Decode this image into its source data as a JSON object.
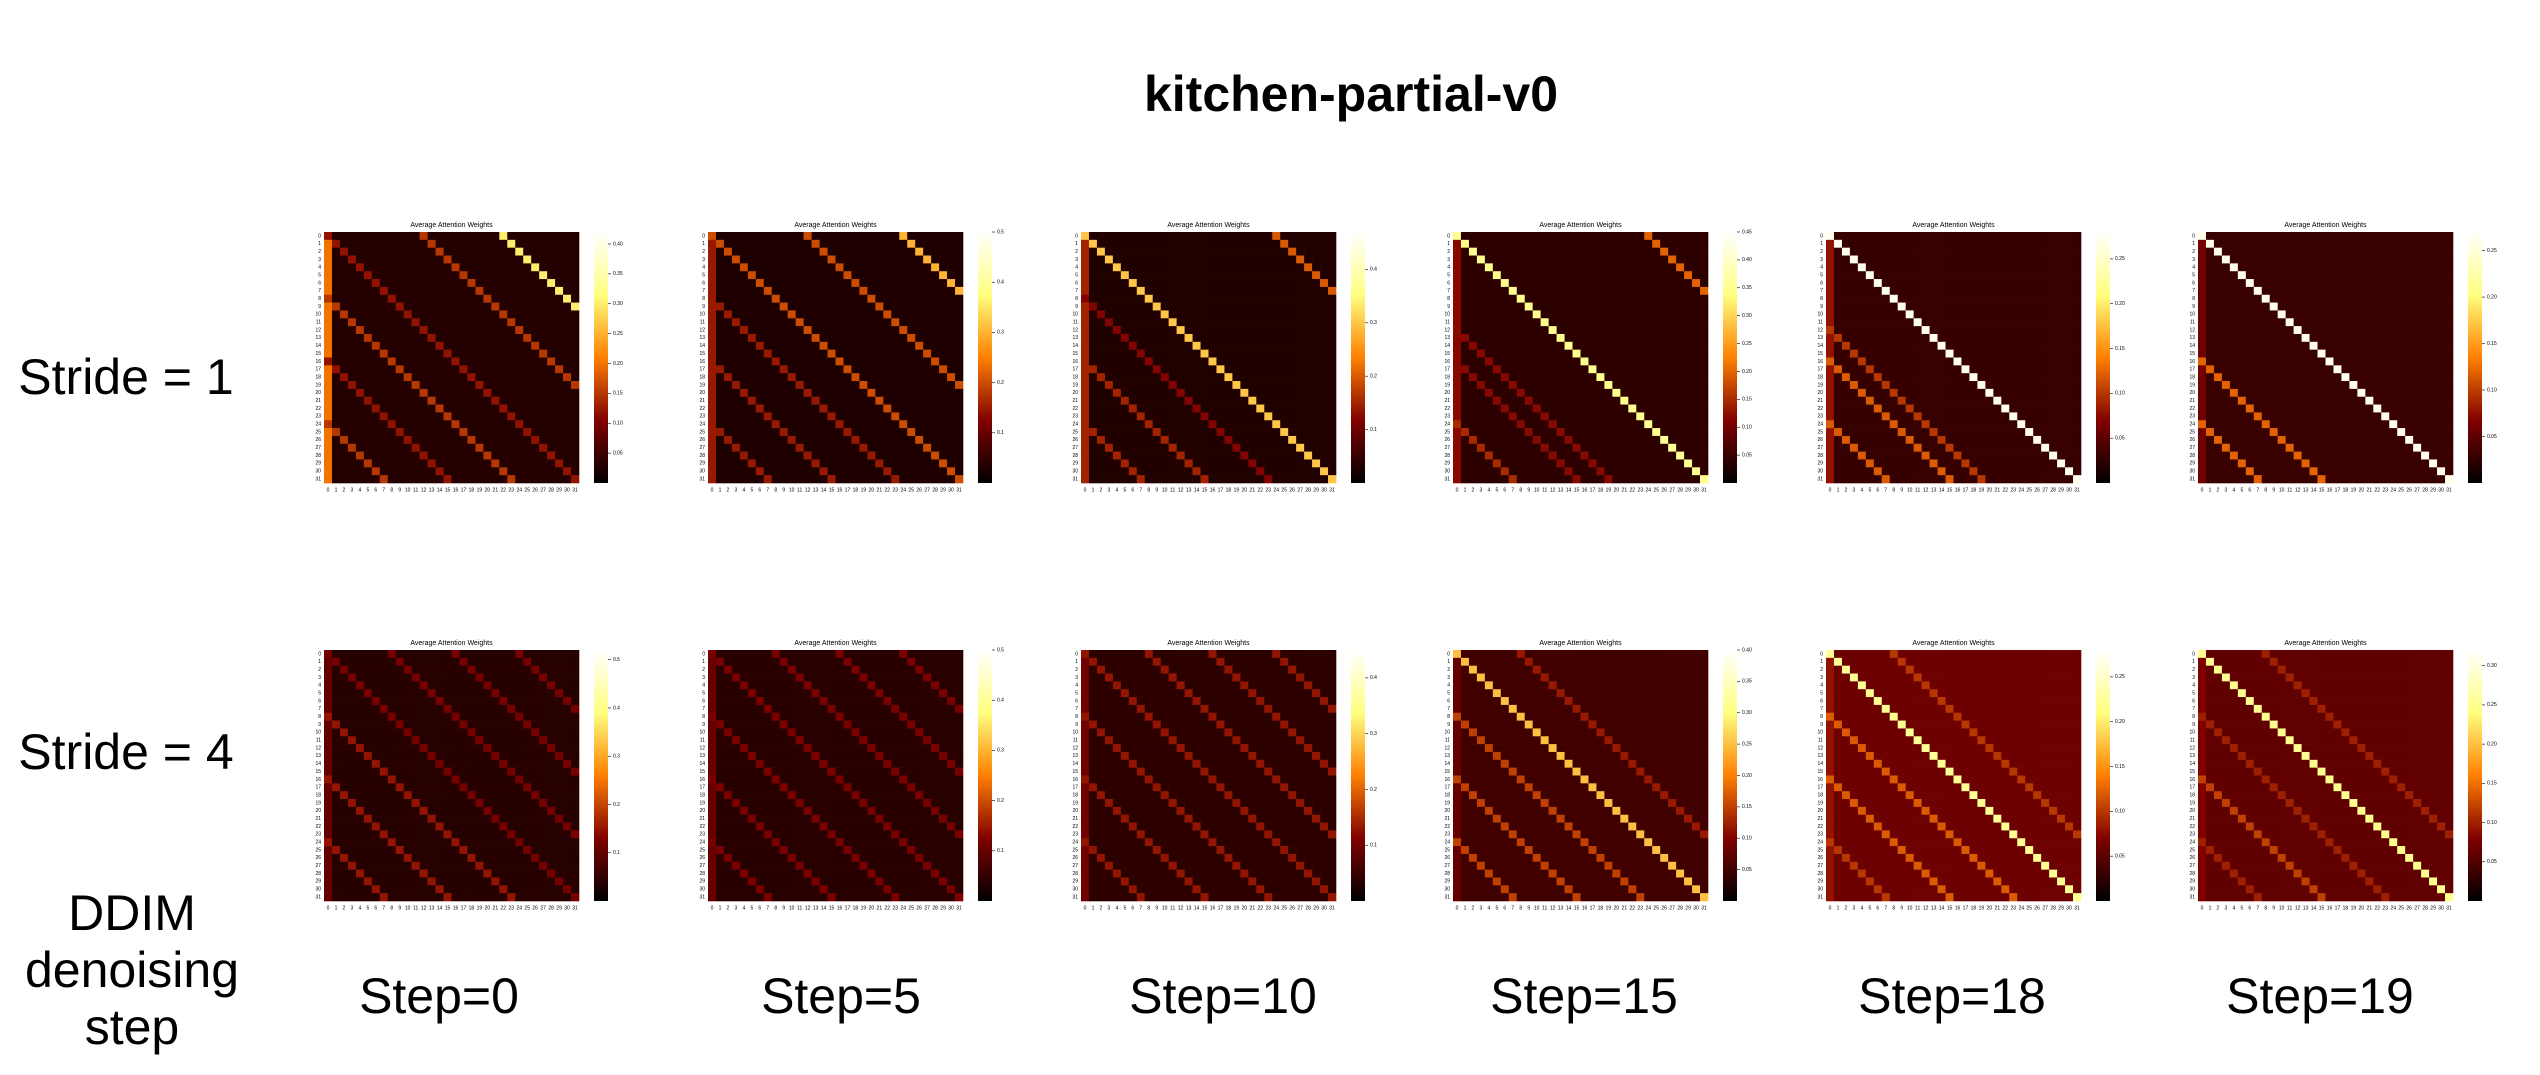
{
  "title": "kitchen-partial-v0",
  "row_labels": [
    "Stride = 1",
    "Stride = 4"
  ],
  "x_axis_label": [
    "DDIM",
    "denoising",
    "step"
  ],
  "column_labels": [
    "Step=0",
    "Step=5",
    "Step=10",
    "Step=15",
    "Step=18",
    "Step=19"
  ],
  "chart_data": [
    {
      "type": "heatmap",
      "title": "Average Attention Weights",
      "categories": [
        0,
        1,
        2,
        3,
        4,
        5,
        6,
        7,
        8,
        9,
        10,
        11,
        12,
        13,
        14,
        15,
        16,
        17,
        18,
        19,
        20,
        21,
        22,
        23,
        24,
        25,
        26,
        27,
        28,
        29,
        30,
        31
      ],
      "background": 0.03,
      "first_column": 0.2,
      "diagonals": [
        {
          "offset": -22,
          "value": 0.3
        },
        {
          "offset": -12,
          "value": 0.15
        },
        {
          "offset": 0,
          "value": 0.12
        },
        {
          "offset": 8,
          "value": 0.15
        },
        {
          "offset": 16,
          "value": 0.12
        },
        {
          "offset": 24,
          "value": 0.15
        }
      ],
      "clim": [
        0,
        0.42
      ],
      "cticks": [
        0.05,
        {
          "value": 0.1,
          "label": "0.10"
        },
        0.15,
        {
          "value": 0.2,
          "label": "0.20"
        },
        0.25,
        {
          "value": 0.3,
          "label": "0.30"
        },
        0.35,
        {
          "value": 0.4,
          "label": "0.40"
        }
      ]
    },
    {
      "type": "heatmap",
      "title": "Average Attention Weights",
      "categories": [
        0,
        1,
        2,
        3,
        4,
        5,
        6,
        7,
        8,
        9,
        10,
        11,
        12,
        13,
        14,
        15,
        16,
        17,
        18,
        19,
        20,
        21,
        22,
        23,
        24,
        25,
        26,
        27,
        28,
        29,
        30,
        31
      ],
      "background": 0.03,
      "first_column": 0.15,
      "diagonals": [
        {
          "offset": -24,
          "value": 0.3
        },
        {
          "offset": -12,
          "value": 0.2
        },
        {
          "offset": 0,
          "value": 0.2
        },
        {
          "offset": 8,
          "value": 0.15
        },
        {
          "offset": 16,
          "value": 0.15
        },
        {
          "offset": 24,
          "value": 0.15
        }
      ],
      "clim": [
        0,
        0.5
      ],
      "cticks": [
        0.1,
        0.2,
        0.3,
        0.4,
        0.5
      ]
    },
    {
      "type": "heatmap",
      "title": "Average Attention Weights",
      "categories": [
        0,
        1,
        2,
        3,
        4,
        5,
        6,
        7,
        8,
        9,
        10,
        11,
        12,
        13,
        14,
        15,
        16,
        17,
        18,
        19,
        20,
        21,
        22,
        23,
        24,
        25,
        26,
        27,
        28,
        29,
        30,
        31
      ],
      "background": 0.03,
      "first_column": 0.15,
      "diagonals": [
        {
          "offset": -24,
          "value": 0.2
        },
        {
          "offset": 0,
          "value": 0.3
        },
        {
          "offset": 8,
          "value": 0.12
        },
        {
          "offset": 16,
          "value": 0.15
        },
        {
          "offset": 24,
          "value": 0.15
        }
      ],
      "clim": [
        0,
        0.47
      ],
      "cticks": [
        0.1,
        0.2,
        0.3,
        0.4
      ]
    },
    {
      "type": "heatmap",
      "title": "Average Attention Weights",
      "categories": [
        0,
        1,
        2,
        3,
        4,
        5,
        6,
        7,
        8,
        9,
        10,
        11,
        12,
        13,
        14,
        15,
        16,
        17,
        18,
        19,
        20,
        21,
        22,
        23,
        24,
        25,
        26,
        27,
        28,
        29,
        30,
        31
      ],
      "background": 0.04,
      "first_column": 0.12,
      "diagonals": [
        {
          "offset": -24,
          "value": 0.2
        },
        {
          "offset": 0,
          "value": 0.35
        },
        {
          "offset": 12,
          "value": 0.12
        },
        {
          "offset": 16,
          "value": 0.12
        },
        {
          "offset": 24,
          "value": 0.15
        }
      ],
      "clim": [
        0,
        0.45
      ],
      "cticks": [
        0.05,
        {
          "value": 0.1,
          "label": "0.10"
        },
        0.15,
        {
          "value": 0.2,
          "label": "0.20"
        },
        0.25,
        {
          "value": 0.3,
          "label": "0.30"
        },
        0.35,
        {
          "value": 0.4,
          "label": "0.40"
        },
        0.45
      ]
    },
    {
      "type": "heatmap",
      "title": "Average Attention Weights",
      "categories": [
        0,
        1,
        2,
        3,
        4,
        5,
        6,
        7,
        8,
        9,
        10,
        11,
        12,
        13,
        14,
        15,
        16,
        17,
        18,
        19,
        20,
        21,
        22,
        23,
        24,
        25,
        26,
        27,
        28,
        29,
        30,
        31
      ],
      "background": 0.03,
      "first_column": 0.08,
      "diagonals": [
        {
          "offset": 0,
          "value": 0.27
        },
        {
          "offset": 12,
          "value": 0.1
        },
        {
          "offset": 16,
          "value": 0.12
        },
        {
          "offset": 24,
          "value": 0.12
        }
      ],
      "clim": [
        0,
        0.28
      ],
      "cticks": [
        0.05,
        {
          "value": 0.1,
          "label": "0.10"
        },
        0.15,
        {
          "value": 0.2,
          "label": "0.20"
        },
        0.25
      ]
    },
    {
      "type": "heatmap",
      "title": "Average Attention Weights",
      "categories": [
        0,
        1,
        2,
        3,
        4,
        5,
        6,
        7,
        8,
        9,
        10,
        11,
        12,
        13,
        14,
        15,
        16,
        17,
        18,
        19,
        20,
        21,
        22,
        23,
        24,
        25,
        26,
        27,
        28,
        29,
        30,
        31
      ],
      "background": 0.03,
      "first_column": 0.06,
      "diagonals": [
        {
          "offset": 0,
          "value": 0.26
        },
        {
          "offset": 16,
          "value": 0.12
        },
        {
          "offset": 24,
          "value": 0.12
        }
      ],
      "clim": [
        0,
        0.27
      ],
      "cticks": [
        0.05,
        {
          "value": 0.1,
          "label": "0.10"
        },
        0.15,
        {
          "value": 0.2,
          "label": "0.20"
        },
        0.25
      ]
    },
    {
      "type": "heatmap",
      "title": "Average Attention Weights",
      "categories": [
        0,
        1,
        2,
        3,
        4,
        5,
        6,
        7,
        8,
        9,
        10,
        11,
        12,
        13,
        14,
        15,
        16,
        17,
        18,
        19,
        20,
        21,
        22,
        23,
        24,
        25,
        26,
        27,
        28,
        29,
        30,
        31
      ],
      "background": 0.04,
      "first_column": 0.1,
      "diagonals": [
        {
          "offset": -24,
          "value": 0.12
        },
        {
          "offset": -16,
          "value": 0.12
        },
        {
          "offset": -8,
          "value": 0.12
        },
        {
          "offset": 0,
          "value": 0.12
        },
        {
          "offset": 8,
          "value": 0.15
        },
        {
          "offset": 16,
          "value": 0.15
        },
        {
          "offset": 24,
          "value": 0.15
        }
      ],
      "clim": [
        0,
        0.52
      ],
      "cticks": [
        0.1,
        0.2,
        0.3,
        0.4,
        0.5
      ]
    },
    {
      "type": "heatmap",
      "title": "Average Attention Weights",
      "categories": [
        0,
        1,
        2,
        3,
        4,
        5,
        6,
        7,
        8,
        9,
        10,
        11,
        12,
        13,
        14,
        15,
        16,
        17,
        18,
        19,
        20,
        21,
        22,
        23,
        24,
        25,
        26,
        27,
        28,
        29,
        30,
        31
      ],
      "background": 0.04,
      "first_column": 0.1,
      "diagonals": [
        {
          "offset": -24,
          "value": 0.12
        },
        {
          "offset": -16,
          "value": 0.12
        },
        {
          "offset": -8,
          "value": 0.12
        },
        {
          "offset": 0,
          "value": 0.12
        },
        {
          "offset": 8,
          "value": 0.12
        },
        {
          "offset": 16,
          "value": 0.12
        },
        {
          "offset": 24,
          "value": 0.12
        }
      ],
      "clim": [
        0,
        0.5
      ],
      "cticks": [
        0.1,
        0.2,
        0.3,
        0.4,
        0.5
      ]
    },
    {
      "type": "heatmap",
      "title": "Average Attention Weights",
      "categories": [
        0,
        1,
        2,
        3,
        4,
        5,
        6,
        7,
        8,
        9,
        10,
        11,
        12,
        13,
        14,
        15,
        16,
        17,
        18,
        19,
        20,
        21,
        22,
        23,
        24,
        25,
        26,
        27,
        28,
        29,
        30,
        31
      ],
      "background": 0.04,
      "first_column": 0.1,
      "diagonals": [
        {
          "offset": -24,
          "value": 0.13
        },
        {
          "offset": -16,
          "value": 0.13
        },
        {
          "offset": -8,
          "value": 0.13
        },
        {
          "offset": 0,
          "value": 0.13
        },
        {
          "offset": 8,
          "value": 0.13
        },
        {
          "offset": 16,
          "value": 0.13
        },
        {
          "offset": 24,
          "value": 0.13
        }
      ],
      "clim": [
        0,
        0.45
      ],
      "cticks": [
        0.1,
        0.2,
        0.3,
        0.4
      ]
    },
    {
      "type": "heatmap",
      "title": "Average Attention Weights",
      "categories": [
        0,
        1,
        2,
        3,
        4,
        5,
        6,
        7,
        8,
        9,
        10,
        11,
        12,
        13,
        14,
        15,
        16,
        17,
        18,
        19,
        20,
        21,
        22,
        23,
        24,
        25,
        26,
        27,
        28,
        29,
        30,
        31
      ],
      "background": 0.05,
      "first_column": 0.08,
      "diagonals": [
        {
          "offset": -8,
          "value": 0.12
        },
        {
          "offset": 0,
          "value": 0.25
        },
        {
          "offset": 8,
          "value": 0.15
        },
        {
          "offset": 16,
          "value": 0.15
        },
        {
          "offset": 24,
          "value": 0.15
        }
      ],
      "clim": [
        0,
        0.4
      ],
      "cticks": [
        0.05,
        {
          "value": 0.1,
          "label": "0.10"
        },
        0.15,
        {
          "value": 0.2,
          "label": "0.20"
        },
        0.25,
        {
          "value": 0.3,
          "label": "0.30"
        },
        0.35,
        {
          "value": 0.4,
          "label": "0.40"
        }
      ]
    },
    {
      "type": "heatmap",
      "title": "Average Attention Weights",
      "categories": [
        0,
        1,
        2,
        3,
        4,
        5,
        6,
        7,
        8,
        9,
        10,
        11,
        12,
        13,
        14,
        15,
        16,
        17,
        18,
        19,
        20,
        21,
        22,
        23,
        24,
        25,
        26,
        27,
        28,
        29,
        30,
        31
      ],
      "background": 0.06,
      "first_column": 0.08,
      "diagonals": [
        {
          "offset": -8,
          "value": 0.1
        },
        {
          "offset": 0,
          "value": 0.22
        },
        {
          "offset": 8,
          "value": 0.12
        },
        {
          "offset": 16,
          "value": 0.12
        },
        {
          "offset": 24,
          "value": 0.1
        }
      ],
      "clim": [
        0,
        0.28
      ],
      "cticks": [
        0.05,
        {
          "value": 0.1,
          "label": "0.10"
        },
        0.15,
        {
          "value": 0.2,
          "label": "0.20"
        },
        0.25
      ]
    },
    {
      "type": "heatmap",
      "title": "Average Attention Weights",
      "categories": [
        0,
        1,
        2,
        3,
        4,
        5,
        6,
        7,
        8,
        9,
        10,
        11,
        12,
        13,
        14,
        15,
        16,
        17,
        18,
        19,
        20,
        21,
        22,
        23,
        24,
        25,
        26,
        27,
        28,
        29,
        30,
        31
      ],
      "background": 0.06,
      "first_column": 0.08,
      "diagonals": [
        {
          "offset": -8,
          "value": 0.1
        },
        {
          "offset": 0,
          "value": 0.25
        },
        {
          "offset": 8,
          "value": 0.1
        },
        {
          "offset": 16,
          "value": 0.12
        },
        {
          "offset": 24,
          "value": 0.1
        }
      ],
      "clim": [
        0,
        0.32
      ],
      "cticks": [
        0.05,
        {
          "value": 0.1,
          "label": "0.10"
        },
        0.15,
        {
          "value": 0.2,
          "label": "0.20"
        },
        0.25,
        {
          "value": 0.3,
          "label": "0.30"
        }
      ]
    }
  ]
}
